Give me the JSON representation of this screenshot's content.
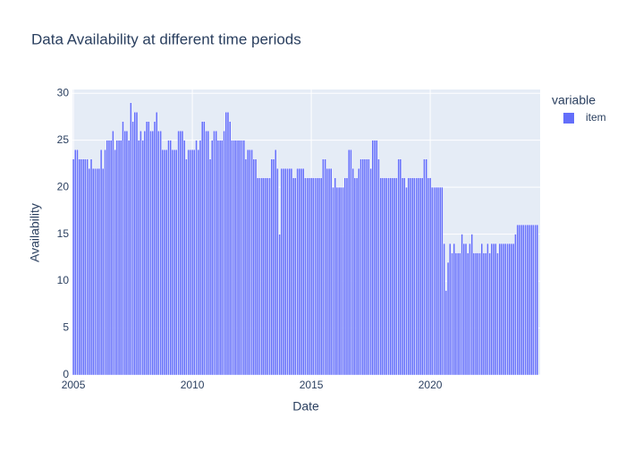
{
  "chart_data": {
    "type": "bar",
    "title": "Data Availability at different time periods",
    "x_label": "Date",
    "y_label": "Availability",
    "legend_title": "variable",
    "grid": true,
    "legend_position": "right",
    "xlim": [
      2004.96,
      2024.62
    ],
    "xticks": [
      2005,
      2010,
      2015,
      2020
    ],
    "ylim": [
      0,
      30.4
    ],
    "yticks": [
      0,
      5,
      10,
      15,
      20,
      25,
      30
    ],
    "x": [
      2005.0,
      2005.083,
      2005.167,
      2005.25,
      2005.333,
      2005.417,
      2005.5,
      2005.583,
      2005.667,
      2005.75,
      2005.833,
      2005.917,
      2006.0,
      2006.083,
      2006.167,
      2006.25,
      2006.333,
      2006.417,
      2006.5,
      2006.583,
      2006.667,
      2006.75,
      2006.833,
      2006.917,
      2007.0,
      2007.083,
      2007.167,
      2007.25,
      2007.333,
      2007.417,
      2007.5,
      2007.583,
      2007.667,
      2007.75,
      2007.833,
      2007.917,
      2008.0,
      2008.083,
      2008.167,
      2008.25,
      2008.333,
      2008.417,
      2008.5,
      2008.583,
      2008.667,
      2008.75,
      2008.833,
      2008.917,
      2009.0,
      2009.083,
      2009.167,
      2009.25,
      2009.333,
      2009.417,
      2009.5,
      2009.583,
      2009.667,
      2009.75,
      2009.833,
      2009.917,
      2010.0,
      2010.083,
      2010.167,
      2010.25,
      2010.333,
      2010.417,
      2010.5,
      2010.583,
      2010.667,
      2010.75,
      2010.833,
      2010.917,
      2011.0,
      2011.083,
      2011.167,
      2011.25,
      2011.333,
      2011.417,
      2011.5,
      2011.583,
      2011.667,
      2011.75,
      2011.833,
      2011.917,
      2012.0,
      2012.083,
      2012.167,
      2012.25,
      2012.333,
      2012.417,
      2012.5,
      2012.583,
      2012.667,
      2012.75,
      2012.833,
      2012.917,
      2013.0,
      2013.083,
      2013.167,
      2013.25,
      2013.333,
      2013.417,
      2013.5,
      2013.583,
      2013.667,
      2013.75,
      2013.833,
      2013.917,
      2014.0,
      2014.083,
      2014.167,
      2014.25,
      2014.333,
      2014.417,
      2014.5,
      2014.583,
      2014.667,
      2014.75,
      2014.833,
      2014.917,
      2015.0,
      2015.083,
      2015.167,
      2015.25,
      2015.333,
      2015.417,
      2015.5,
      2015.583,
      2015.667,
      2015.75,
      2015.833,
      2015.917,
      2016.0,
      2016.083,
      2016.167,
      2016.25,
      2016.333,
      2016.417,
      2016.5,
      2016.583,
      2016.667,
      2016.75,
      2016.833,
      2016.917,
      2017.0,
      2017.083,
      2017.167,
      2017.25,
      2017.333,
      2017.417,
      2017.5,
      2017.583,
      2017.667,
      2017.75,
      2017.833,
      2017.917,
      2018.0,
      2018.083,
      2018.167,
      2018.25,
      2018.333,
      2018.417,
      2018.5,
      2018.583,
      2018.667,
      2018.75,
      2018.833,
      2018.917,
      2019.0,
      2019.083,
      2019.167,
      2019.25,
      2019.333,
      2019.417,
      2019.5,
      2019.583,
      2019.667,
      2019.75,
      2019.833,
      2019.917,
      2020.0,
      2020.083,
      2020.167,
      2020.25,
      2020.333,
      2020.417,
      2020.5,
      2020.583,
      2020.667,
      2020.75,
      2020.833,
      2020.917,
      2021.0,
      2021.083,
      2021.167,
      2021.25,
      2021.333,
      2021.417,
      2021.5,
      2021.583,
      2021.667,
      2021.75,
      2021.833,
      2021.917,
      2022.0,
      2022.083,
      2022.167,
      2022.25,
      2022.333,
      2022.417,
      2022.5,
      2022.583,
      2022.667,
      2022.75,
      2022.833,
      2022.917,
      2023.0,
      2023.083,
      2023.167,
      2023.25,
      2023.333,
      2023.417,
      2023.5,
      2023.583,
      2023.667,
      2023.75,
      2023.833,
      2023.917,
      2024.0,
      2024.083,
      2024.167,
      2024.25,
      2024.333,
      2024.417,
      2024.5
    ],
    "series": [
      {
        "name": "item",
        "color": "#636efa",
        "values": [
          23,
          24,
          24,
          23,
          23,
          23,
          23,
          23,
          22,
          23,
          22,
          22,
          22,
          22,
          24,
          22,
          24,
          25,
          25,
          25,
          26,
          24,
          25,
          25,
          25,
          27,
          26,
          26,
          25,
          29,
          27,
          28,
          28,
          25,
          26,
          25,
          26,
          27,
          27,
          26,
          26,
          27,
          28,
          26,
          26,
          24,
          24,
          24,
          25,
          25,
          24,
          24,
          24,
          26,
          26,
          26,
          25,
          23,
          24,
          24,
          24,
          24,
          25,
          24,
          25,
          27,
          27,
          26,
          26,
          23,
          25,
          26,
          26,
          25,
          25,
          25,
          26,
          28,
          28,
          27,
          25,
          25,
          25,
          25,
          25,
          25,
          25,
          23,
          24,
          24,
          24,
          23,
          23,
          21,
          21,
          21,
          21,
          21,
          21,
          21,
          23,
          23,
          24,
          22,
          15,
          22,
          22,
          22,
          22,
          22,
          22,
          21,
          21,
          22,
          22,
          22,
          22,
          21,
          21,
          21,
          21,
          21,
          21,
          21,
          21,
          21,
          23,
          23,
          22,
          22,
          22,
          20,
          21,
          20,
          20,
          20,
          20,
          21,
          21,
          24,
          24,
          22,
          21,
          21,
          22,
          23,
          23,
          23,
          23,
          23,
          22,
          25,
          25,
          25,
          23,
          21,
          21,
          21,
          21,
          21,
          21,
          21,
          21,
          21,
          23,
          23,
          21,
          21,
          20,
          21,
          21,
          21,
          21,
          21,
          21,
          21,
          21,
          23,
          23,
          21,
          21,
          20,
          20,
          20,
          20,
          20,
          20,
          14,
          9,
          12,
          14,
          13,
          14,
          13,
          13,
          13,
          15,
          14,
          14,
          13,
          14,
          15,
          13,
          13,
          13,
          13,
          14,
          13,
          13,
          14,
          13,
          14,
          14,
          14,
          13,
          14,
          14,
          14,
          14,
          14,
          14,
          14,
          14,
          15,
          16,
          16,
          16,
          16,
          16,
          16,
          16,
          16,
          16,
          16,
          16
        ]
      }
    ]
  }
}
